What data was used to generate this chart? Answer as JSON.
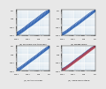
{
  "background": "#e8e8e8",
  "plot_bg": "#dde8f0",
  "grid_color": "#ffffff",
  "subplots": [
    {
      "label": "(a) Minimum film thickness",
      "xlim": [
        0.01,
        10
      ],
      "ylim": [
        0.01,
        10
      ],
      "curves": [
        {
          "x": [
            0.01,
            0.02,
            0.05,
            0.1,
            0.2,
            0.5,
            1,
            2,
            5,
            10
          ],
          "y": [
            0.013,
            0.022,
            0.05,
            0.1,
            0.19,
            0.45,
            0.9,
            1.8,
            4.5,
            8.5
          ],
          "color": "#2255aa",
          "lw": 0.5
        },
        {
          "x": [
            0.01,
            0.02,
            0.05,
            0.1,
            0.2,
            0.5,
            1,
            2,
            5,
            10
          ],
          "y": [
            0.016,
            0.028,
            0.065,
            0.13,
            0.26,
            0.62,
            1.25,
            2.5,
            6.0,
            9.5
          ],
          "color": "#2255aa",
          "lw": 0.5
        },
        {
          "x": [
            0.01,
            0.02,
            0.05,
            0.1,
            0.2,
            0.5,
            1,
            2,
            5,
            10
          ],
          "y": [
            0.02,
            0.035,
            0.082,
            0.17,
            0.34,
            0.82,
            1.65,
            3.3,
            7.5,
            9.9
          ],
          "color": "#2255aa",
          "lw": 0.5
        },
        {
          "x": [
            0.01,
            0.02,
            0.05,
            0.1,
            0.2,
            0.5,
            1,
            2,
            5,
            10
          ],
          "y": [
            0.01,
            0.018,
            0.04,
            0.08,
            0.15,
            0.36,
            0.7,
            1.4,
            3.5,
            7.0
          ],
          "color": "#2255aa",
          "lw": 0.5
        },
        {
          "x": [
            0.01,
            0.02,
            0.05,
            0.1,
            0.2,
            0.5,
            1,
            2,
            5,
            10
          ],
          "y": [
            0.008,
            0.014,
            0.032,
            0.065,
            0.12,
            0.29,
            0.58,
            1.15,
            2.9,
            6.0
          ],
          "color": "#2255aa",
          "lw": 0.5
        }
      ],
      "fill": {
        "y_lo": [
          0.008,
          0.014,
          0.032,
          0.065,
          0.12,
          0.29,
          0.58,
          1.15,
          2.9,
          6.0
        ],
        "y_hi": [
          0.02,
          0.035,
          0.082,
          0.17,
          0.34,
          0.82,
          1.65,
          3.3,
          7.5,
          9.9
        ],
        "color": "#4488cc",
        "alpha": 0.45
      }
    },
    {
      "label": "(b) Wedge angle",
      "xlim": [
        0.01,
        10
      ],
      "ylim": [
        0.01,
        10
      ],
      "curves": [
        {
          "x": [
            0.01,
            0.02,
            0.05,
            0.1,
            0.2,
            0.5,
            1,
            2,
            5,
            10
          ],
          "y": [
            0.014,
            0.024,
            0.055,
            0.11,
            0.21,
            0.5,
            1.0,
            2.0,
            5.0,
            9.0
          ],
          "color": "#2255aa",
          "lw": 0.5
        },
        {
          "x": [
            0.01,
            0.02,
            0.05,
            0.1,
            0.2,
            0.5,
            1,
            2,
            5,
            10
          ],
          "y": [
            0.018,
            0.03,
            0.072,
            0.145,
            0.29,
            0.7,
            1.4,
            2.8,
            6.5,
            9.7
          ],
          "color": "#2255aa",
          "lw": 0.5
        },
        {
          "x": [
            0.01,
            0.02,
            0.05,
            0.1,
            0.2,
            0.5,
            1,
            2,
            5,
            10
          ],
          "y": [
            0.011,
            0.019,
            0.044,
            0.088,
            0.17,
            0.41,
            0.82,
            1.65,
            4.1,
            8.0
          ],
          "color": "#2255aa",
          "lw": 0.5
        },
        {
          "x": [
            0.01,
            0.02,
            0.05,
            0.1,
            0.2,
            0.5,
            1,
            2,
            5,
            10
          ],
          "y": [
            0.009,
            0.015,
            0.035,
            0.07,
            0.13,
            0.32,
            0.64,
            1.28,
            3.2,
            6.5
          ],
          "color": "#2255aa",
          "lw": 0.5
        }
      ],
      "fill": {
        "y_lo": [
          0.009,
          0.015,
          0.035,
          0.07,
          0.13,
          0.32,
          0.64,
          1.28,
          3.2,
          6.5
        ],
        "y_hi": [
          0.018,
          0.03,
          0.072,
          0.145,
          0.29,
          0.7,
          1.4,
          2.8,
          6.5,
          9.7
        ],
        "color": "#4488cc",
        "alpha": 0.45
      }
    },
    {
      "label": "(c) Friction number",
      "xlim": [
        0.01,
        10
      ],
      "ylim": [
        0.01,
        10
      ],
      "curves": [
        {
          "x": [
            0.01,
            0.02,
            0.05,
            0.1,
            0.2,
            0.5,
            1,
            2,
            5,
            10
          ],
          "y": [
            0.012,
            0.02,
            0.048,
            0.095,
            0.19,
            0.45,
            0.9,
            1.8,
            4.5,
            8.8
          ],
          "color": "#2255aa",
          "lw": 0.5
        },
        {
          "x": [
            0.01,
            0.02,
            0.05,
            0.1,
            0.2,
            0.5,
            1,
            2,
            5,
            10
          ],
          "y": [
            0.016,
            0.026,
            0.063,
            0.125,
            0.25,
            0.6,
            1.2,
            2.4,
            5.8,
            9.5
          ],
          "color": "#2255aa",
          "lw": 0.5
        },
        {
          "x": [
            0.01,
            0.02,
            0.05,
            0.1,
            0.2,
            0.5,
            1,
            2,
            5,
            10
          ],
          "y": [
            0.009,
            0.016,
            0.038,
            0.076,
            0.15,
            0.36,
            0.72,
            1.44,
            3.6,
            7.2
          ],
          "color": "#2255aa",
          "lw": 0.5
        },
        {
          "x": [
            0.01,
            0.02,
            0.05,
            0.1,
            0.2,
            0.5,
            1,
            2,
            5,
            10
          ],
          "y": [
            0.007,
            0.012,
            0.03,
            0.06,
            0.12,
            0.28,
            0.56,
            1.12,
            2.8,
            5.8
          ],
          "color": "#2255aa",
          "lw": 0.5
        }
      ],
      "fill": {
        "y_lo": [
          0.007,
          0.012,
          0.03,
          0.06,
          0.12,
          0.28,
          0.56,
          1.12,
          2.8,
          5.8
        ],
        "y_hi": [
          0.016,
          0.026,
          0.063,
          0.125,
          0.25,
          0.6,
          1.2,
          2.4,
          5.8,
          9.5
        ],
        "color": "#4488cc",
        "alpha": 0.45
      }
    },
    {
      "label": "(d) Inflow and outflow",
      "xlim": [
        0.01,
        10
      ],
      "ylim": [
        0.01,
        10
      ],
      "curves": [
        {
          "x": [
            0.01,
            0.02,
            0.05,
            0.1,
            0.2,
            0.5,
            1,
            2,
            5,
            10
          ],
          "y": [
            0.014,
            0.023,
            0.054,
            0.108,
            0.22,
            0.52,
            1.04,
            2.1,
            5.2,
            9.2
          ],
          "color": "#2255aa",
          "lw": 0.5
        },
        {
          "x": [
            0.01,
            0.02,
            0.05,
            0.1,
            0.2,
            0.5,
            1,
            2,
            5,
            10
          ],
          "y": [
            0.01,
            0.017,
            0.04,
            0.08,
            0.16,
            0.38,
            0.76,
            1.52,
            3.8,
            7.5
          ],
          "color": "#2255aa",
          "lw": 0.5
        },
        {
          "x": [
            0.01,
            0.02,
            0.05,
            0.1,
            0.2,
            0.5,
            1,
            2,
            5,
            10
          ],
          "y": [
            0.012,
            0.02,
            0.046,
            0.092,
            0.18,
            0.43,
            0.86,
            1.72,
            4.3,
            8.3
          ],
          "color": "#cc3333",
          "lw": 0.5
        },
        {
          "x": [
            0.01,
            0.02,
            0.05,
            0.1,
            0.2,
            0.5,
            1,
            2,
            5,
            10
          ],
          "y": [
            0.008,
            0.014,
            0.033,
            0.066,
            0.13,
            0.31,
            0.62,
            1.24,
            3.1,
            6.2
          ],
          "color": "#cc3333",
          "lw": 0.5
        },
        {
          "x": [
            0.01,
            0.02,
            0.05,
            0.1,
            0.2,
            0.5,
            1,
            2,
            5,
            10
          ],
          "y": [
            0.017,
            0.028,
            0.067,
            0.134,
            0.27,
            0.64,
            1.28,
            2.56,
            6.2,
            9.6
          ],
          "color": "#2255aa",
          "lw": 0.5
        },
        {
          "x": [
            0.01,
            0.02,
            0.05,
            0.1,
            0.2,
            0.5,
            1,
            2,
            5,
            10
          ],
          "y": [
            0.015,
            0.025,
            0.058,
            0.116,
            0.23,
            0.55,
            1.1,
            2.2,
            5.5,
            9.0
          ],
          "color": "#cc3333",
          "lw": 0.5
        }
      ],
      "fill_blue": {
        "y_lo": [
          0.01,
          0.017,
          0.04,
          0.08,
          0.16,
          0.38,
          0.76,
          1.52,
          3.8,
          7.5
        ],
        "y_hi": [
          0.017,
          0.028,
          0.067,
          0.134,
          0.27,
          0.64,
          1.28,
          2.56,
          6.2,
          9.6
        ],
        "color": "#4488cc",
        "alpha": 0.4
      },
      "fill_red": {
        "y_lo": [
          0.008,
          0.014,
          0.033,
          0.066,
          0.13,
          0.31,
          0.62,
          1.24,
          3.1,
          6.2
        ],
        "y_hi": [
          0.015,
          0.025,
          0.058,
          0.116,
          0.23,
          0.55,
          1.1,
          2.2,
          5.5,
          9.0
        ],
        "color": "#dd7777",
        "alpha": 0.4
      }
    }
  ]
}
